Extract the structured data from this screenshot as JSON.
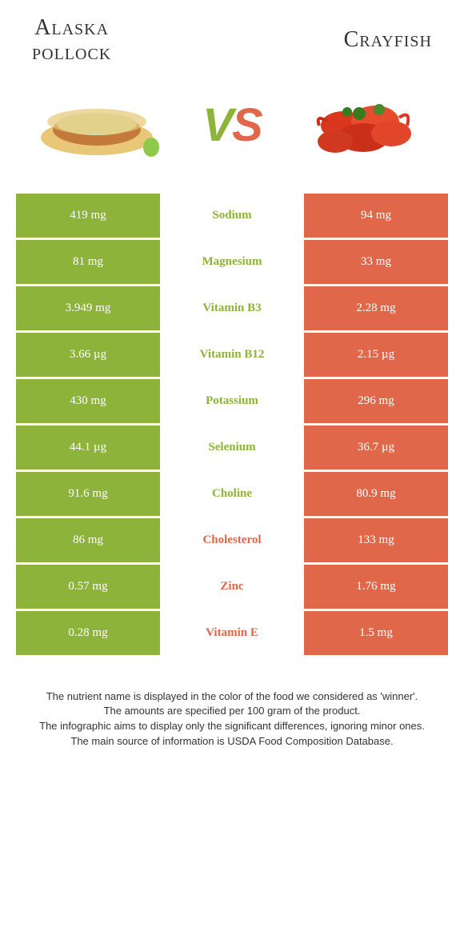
{
  "header": {
    "left_title_line1": "Alaska",
    "left_title_line2": "pollock",
    "right_title": "Crayfish"
  },
  "vs": {
    "v": "V",
    "s": "S"
  },
  "colors": {
    "green": "#8eb33b",
    "orange": "#e1674b",
    "white": "#ffffff"
  },
  "rows": [
    {
      "left": "419 mg",
      "mid": "Sodium",
      "right": "94 mg",
      "winner": "left"
    },
    {
      "left": "81 mg",
      "mid": "Magnesium",
      "right": "33 mg",
      "winner": "left"
    },
    {
      "left": "3.949 mg",
      "mid": "Vitamin B3",
      "right": "2.28 mg",
      "winner": "left"
    },
    {
      "left": "3.66 µg",
      "mid": "Vitamin B12",
      "right": "2.15 µg",
      "winner": "left"
    },
    {
      "left": "430 mg",
      "mid": "Potassium",
      "right": "296 mg",
      "winner": "left"
    },
    {
      "left": "44.1 µg",
      "mid": "Selenium",
      "right": "36.7 µg",
      "winner": "left"
    },
    {
      "left": "91.6 mg",
      "mid": "Choline",
      "right": "80.9 mg",
      "winner": "left"
    },
    {
      "left": "86 mg",
      "mid": "Cholesterol",
      "right": "133 mg",
      "winner": "right"
    },
    {
      "left": "0.57 mg",
      "mid": "Zinc",
      "right": "1.76 mg",
      "winner": "right"
    },
    {
      "left": "0.28 mg",
      "mid": "Vitamin E",
      "right": "1.5 mg",
      "winner": "right"
    }
  ],
  "footer": {
    "line1": "The nutrient name is displayed in the color of the food we considered as 'winner'.",
    "line2": "The amounts are specified per 100 gram of the product.",
    "line3": "The infographic aims to display only the significant differences, ignoring minor ones.",
    "line4": "The main source of information is USDA Food Composition Database."
  }
}
